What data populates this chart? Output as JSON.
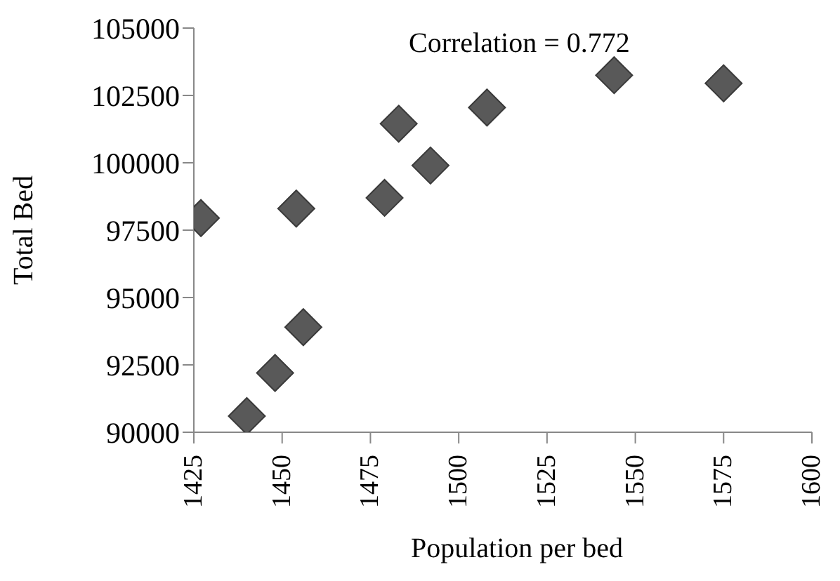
{
  "chart_data": {
    "type": "scatter",
    "xlabel": "Population per bed",
    "ylabel": "Total Bed",
    "annotations": [
      "Correlation = 0.772"
    ],
    "x": [
      1427,
      1454,
      1440,
      1448,
      1456,
      1479,
      1483,
      1492,
      1508,
      1544,
      1575
    ],
    "series": [
      {
        "color": "#595959",
        "values": [
          97950,
          98300,
          90600,
          92200,
          93900,
          98700,
          101450,
          99900,
          102050,
          103250,
          102950
        ]
      }
    ],
    "xlim": [
      1425,
      1600
    ],
    "xticks": [
      1425,
      1450,
      1475,
      1500,
      1525,
      1550,
      1575,
      1600
    ],
    "ylim": [
      90000,
      105000
    ],
    "yticks": [
      90000,
      92500,
      95000,
      97500,
      100000,
      102500,
      105000
    ],
    "grid": false,
    "legend": false,
    "marker": "diamond"
  }
}
